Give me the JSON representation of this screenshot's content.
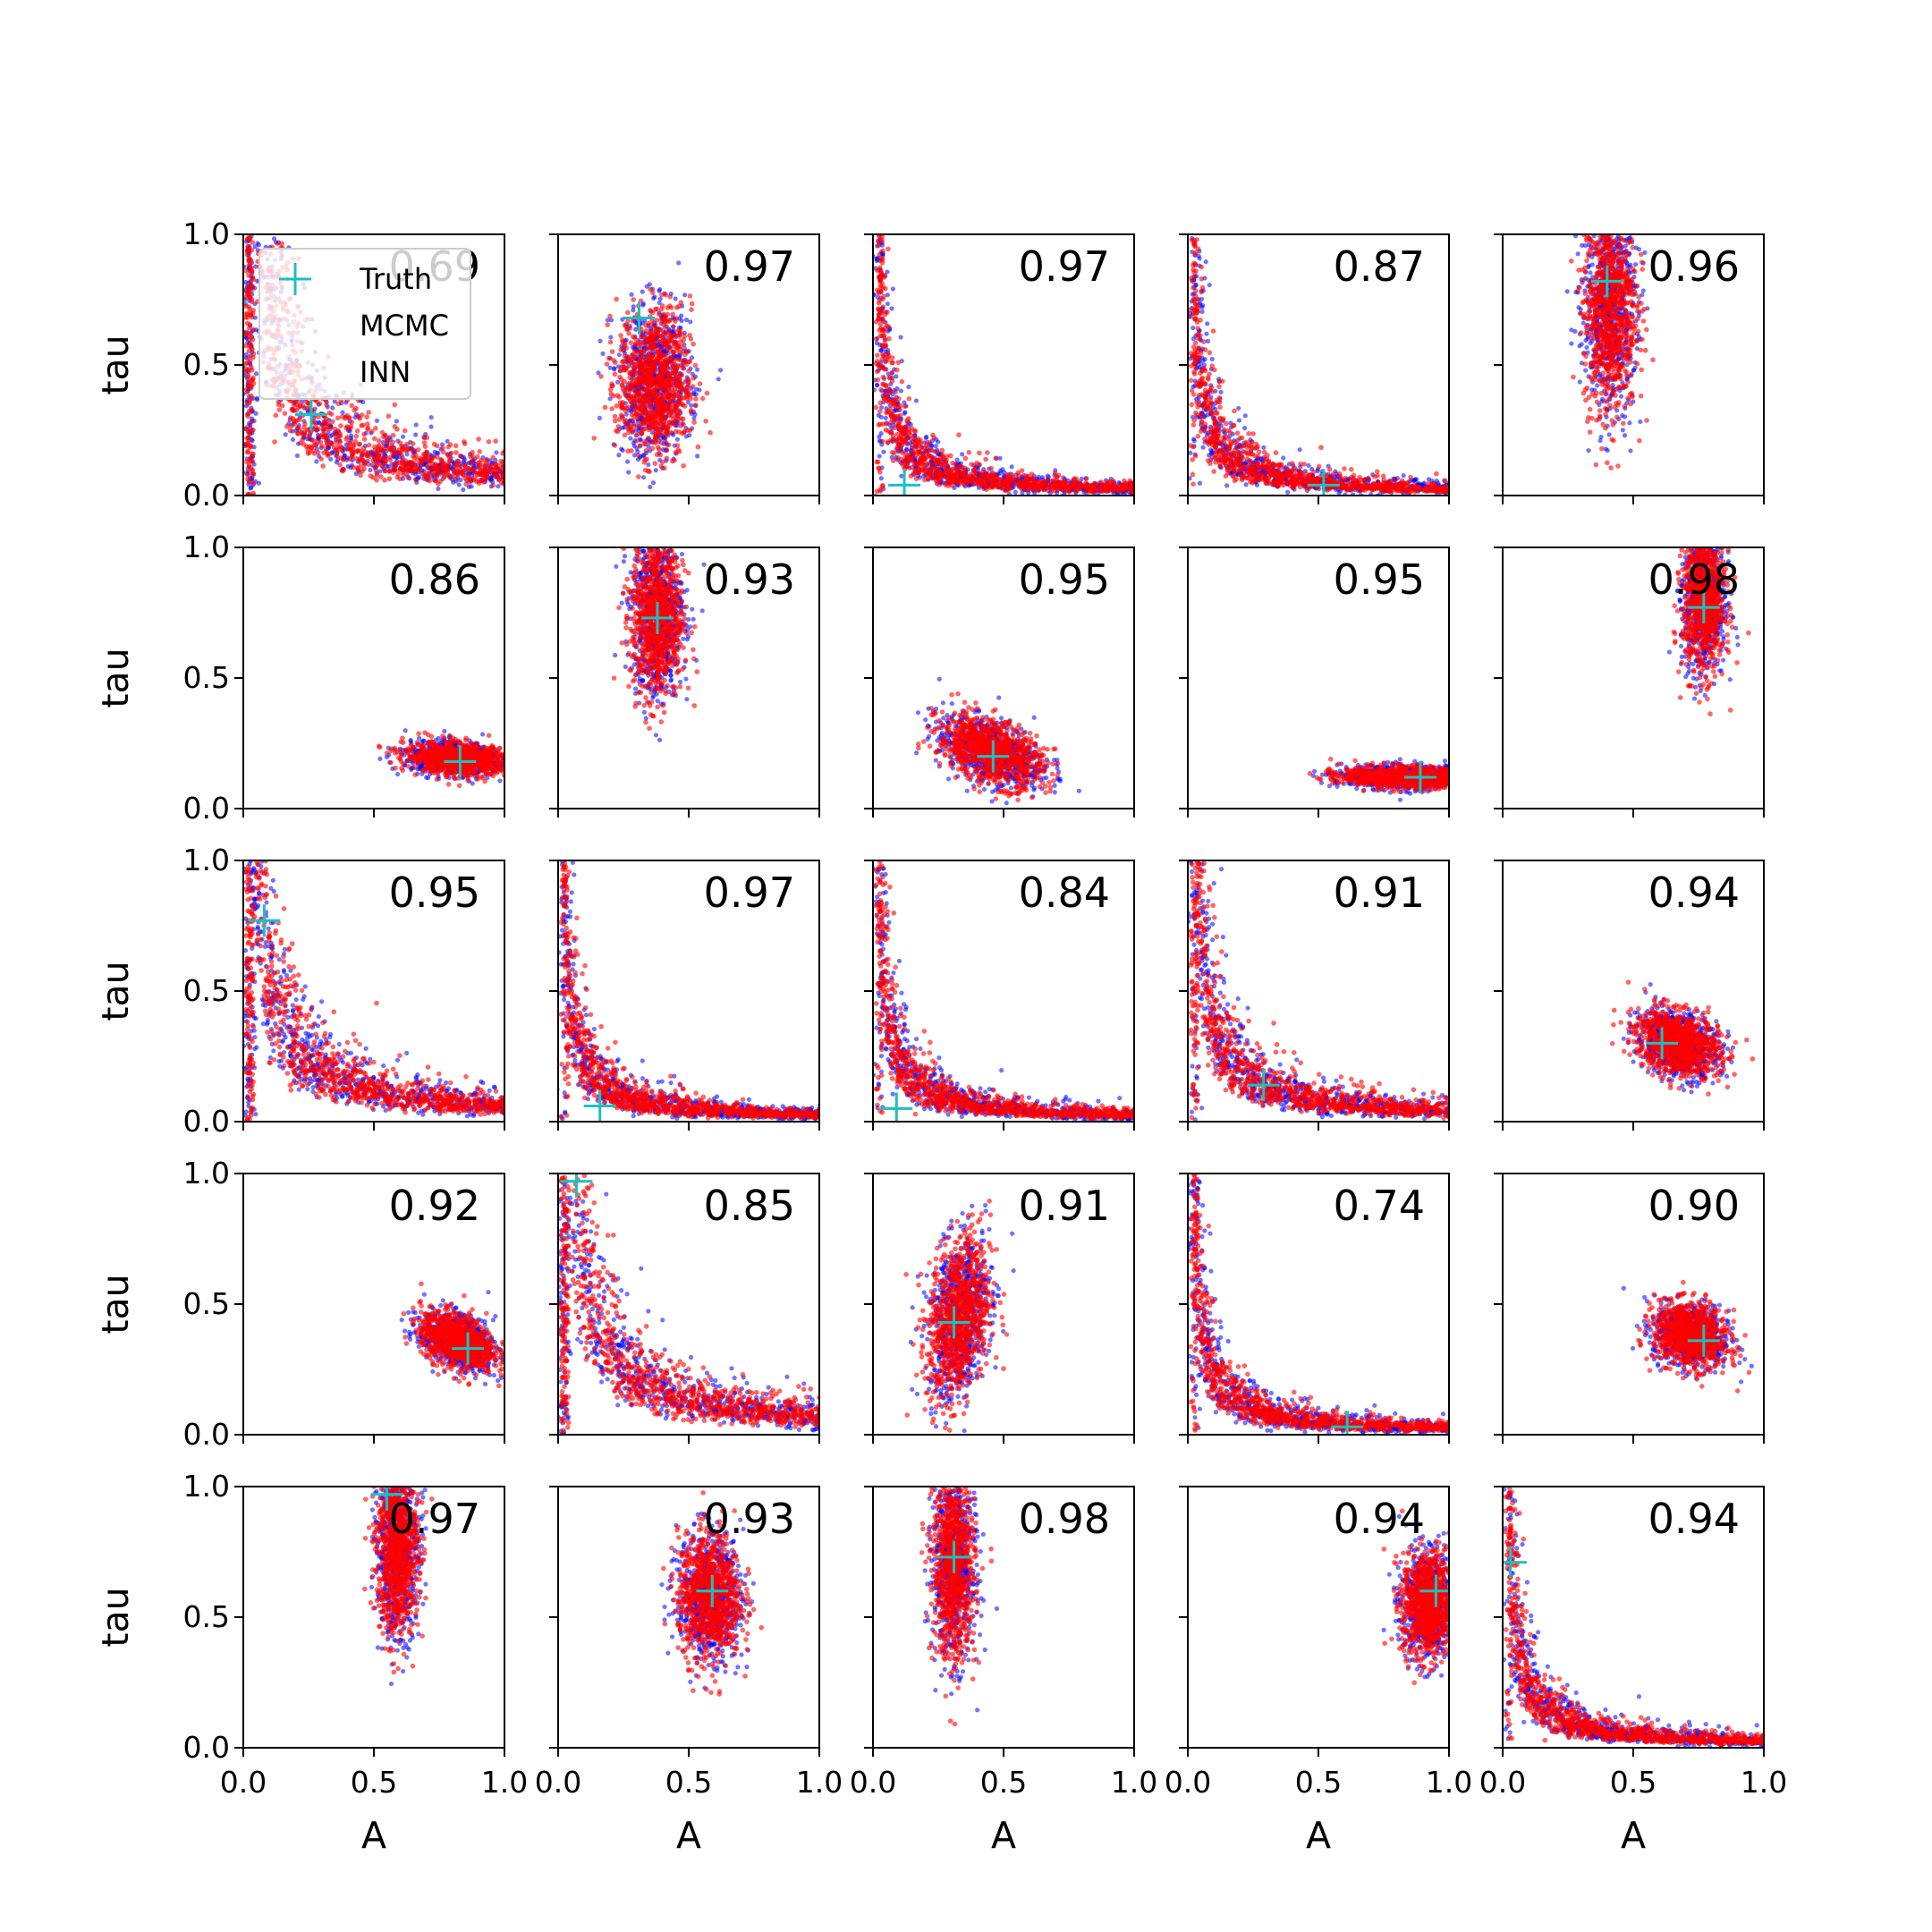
{
  "chart_data": {
    "type": "scatter",
    "grid": false,
    "x_ticks": [
      "0.0",
      "0.5",
      "1.0"
    ],
    "y_ticks": [
      "0.0",
      "0.5",
      "1.0"
    ],
    "xlabel": "A",
    "ylabel": "tau",
    "xlim": [
      0,
      1
    ],
    "ylim": [
      0,
      1
    ],
    "legend": {
      "placement": "upper-left of first panel",
      "entries": [
        {
          "label": "Truth",
          "marker": "plus",
          "color": "#1fbfbf"
        },
        {
          "label": "MCMC",
          "marker": "dot",
          "color": "#0000ff"
        },
        {
          "label": "INN",
          "marker": "dot",
          "color": "#ff0000"
        }
      ]
    },
    "series_colors": {
      "MCMC": "#0000ff",
      "INN": "#ff0000",
      "Truth": "#1fbfbf"
    },
    "panels": [
      {
        "row": 0,
        "col": 0,
        "corr": "0.69",
        "truth": [
          0.26,
          0.31
        ],
        "shape": "banana"
      },
      {
        "row": 0,
        "col": 1,
        "corr": "0.97",
        "truth": [
          0.31,
          0.68
        ],
        "shape": "blob",
        "center": [
          0.37,
          0.43
        ],
        "spread": [
          0.07,
          0.14
        ]
      },
      {
        "row": 0,
        "col": 2,
        "corr": "0.97",
        "truth": [
          0.12,
          0.04
        ],
        "shape": "banana"
      },
      {
        "row": 0,
        "col": 3,
        "corr": "0.87",
        "truth": [
          0.52,
          0.04
        ],
        "shape": "banana"
      },
      {
        "row": 0,
        "col": 4,
        "corr": "0.96",
        "truth": [
          0.4,
          0.82
        ],
        "shape": "blob",
        "center": [
          0.41,
          0.72
        ],
        "spread": [
          0.05,
          0.2
        ]
      },
      {
        "row": 1,
        "col": 0,
        "corr": "0.86",
        "truth": [
          0.83,
          0.18
        ],
        "shape": "blob",
        "center": [
          0.82,
          0.19
        ],
        "spread": [
          0.1,
          0.03
        ],
        "tilt": -0.25
      },
      {
        "row": 1,
        "col": 1,
        "corr": "0.93",
        "truth": [
          0.38,
          0.73
        ],
        "shape": "blob",
        "center": [
          0.38,
          0.74
        ],
        "spread": [
          0.05,
          0.16
        ]
      },
      {
        "row": 1,
        "col": 2,
        "corr": "0.95",
        "truth": [
          0.46,
          0.2
        ],
        "shape": "blob",
        "center": [
          0.45,
          0.22
        ],
        "spread": [
          0.1,
          0.06
        ],
        "tilt": -0.5
      },
      {
        "row": 1,
        "col": 3,
        "corr": "0.95",
        "truth": [
          0.89,
          0.12
        ],
        "shape": "blob",
        "center": [
          0.83,
          0.12
        ],
        "spread": [
          0.12,
          0.02
        ],
        "tilt": -0.12
      },
      {
        "row": 1,
        "col": 4,
        "corr": "0.98",
        "truth": [
          0.77,
          0.77
        ],
        "shape": "blob",
        "center": [
          0.77,
          0.8
        ],
        "spread": [
          0.04,
          0.14
        ]
      },
      {
        "row": 2,
        "col": 0,
        "corr": "0.95",
        "truth": [
          0.08,
          0.77
        ],
        "shape": "banana"
      },
      {
        "row": 2,
        "col": 1,
        "corr": "0.97",
        "truth": [
          0.16,
          0.06
        ],
        "shape": "banana"
      },
      {
        "row": 2,
        "col": 2,
        "corr": "0.84",
        "truth": [
          0.09,
          0.05
        ],
        "shape": "banana"
      },
      {
        "row": 2,
        "col": 3,
        "corr": "0.91",
        "truth": [
          0.29,
          0.14
        ],
        "shape": "banana"
      },
      {
        "row": 2,
        "col": 4,
        "corr": "0.94",
        "truth": [
          0.61,
          0.3
        ],
        "shape": "blob",
        "center": [
          0.67,
          0.3
        ],
        "spread": [
          0.08,
          0.06
        ],
        "tilt": -0.3
      },
      {
        "row": 3,
        "col": 0,
        "corr": "0.92",
        "truth": [
          0.86,
          0.33
        ],
        "shape": "blob",
        "center": [
          0.82,
          0.36
        ],
        "spread": [
          0.07,
          0.05
        ],
        "tilt": -0.4
      },
      {
        "row": 3,
        "col": 1,
        "corr": "0.85",
        "truth": [
          0.07,
          0.97
        ],
        "shape": "banana"
      },
      {
        "row": 3,
        "col": 2,
        "corr": "0.91",
        "truth": [
          0.31,
          0.43
        ],
        "shape": "blob",
        "center": [
          0.33,
          0.45
        ],
        "spread": [
          0.06,
          0.15
        ],
        "tilt": 0.3
      },
      {
        "row": 3,
        "col": 3,
        "corr": "0.74",
        "truth": [
          0.61,
          0.03
        ],
        "shape": "banana"
      },
      {
        "row": 3,
        "col": 4,
        "corr": "0.90",
        "truth": [
          0.77,
          0.36
        ],
        "shape": "blob",
        "center": [
          0.72,
          0.38
        ],
        "spread": [
          0.07,
          0.06
        ],
        "tilt": -0.2
      },
      {
        "row": 4,
        "col": 0,
        "corr": "0.97",
        "truth": [
          0.55,
          0.97
        ],
        "shape": "blob",
        "center": [
          0.59,
          0.76
        ],
        "spread": [
          0.04,
          0.16
        ]
      },
      {
        "row": 4,
        "col": 1,
        "corr": "0.93",
        "truth": [
          0.59,
          0.6
        ],
        "shape": "blob",
        "center": [
          0.58,
          0.58
        ],
        "spread": [
          0.06,
          0.12
        ]
      },
      {
        "row": 4,
        "col": 2,
        "corr": "0.98",
        "truth": [
          0.31,
          0.73
        ],
        "shape": "blob",
        "center": [
          0.31,
          0.7
        ],
        "spread": [
          0.04,
          0.18
        ]
      },
      {
        "row": 4,
        "col": 3,
        "corr": "0.94",
        "truth": [
          0.95,
          0.6
        ],
        "shape": "blob",
        "center": [
          0.92,
          0.55
        ],
        "spread": [
          0.05,
          0.1
        ]
      },
      {
        "row": 4,
        "col": 4,
        "corr": "0.94",
        "truth": [
          0.03,
          0.71
        ],
        "shape": "banana"
      }
    ]
  }
}
